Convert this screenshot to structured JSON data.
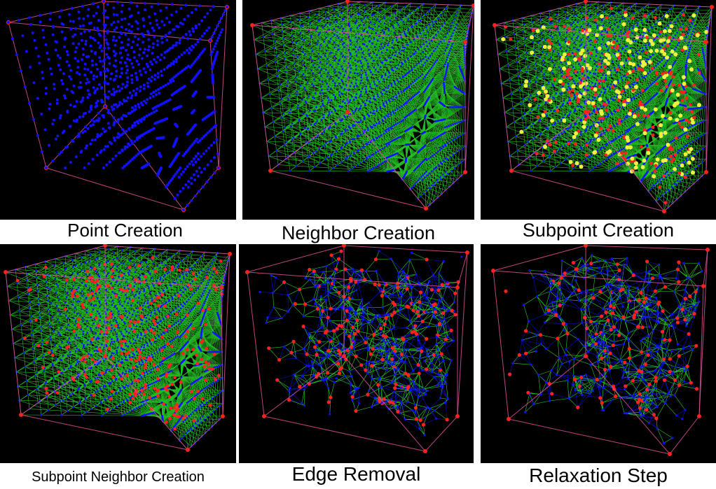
{
  "panels": [
    {
      "id": "p1",
      "caption": "Point Creation"
    },
    {
      "id": "p2",
      "caption": "Neighbor Creation"
    },
    {
      "id": "p3",
      "caption": "Subpoint Creation"
    },
    {
      "id": "p4",
      "caption": "Subpoint Neighbor Creation"
    },
    {
      "id": "p5",
      "caption": "Edge Removal"
    },
    {
      "id": "p6",
      "caption": "Relaxation Step"
    }
  ],
  "colors": {
    "background": "#000000",
    "point": "#1010ff",
    "edge": "#33ff33",
    "subpoint": "#ff2020",
    "highlight": "#f0f040",
    "frame": "#e0509a"
  }
}
